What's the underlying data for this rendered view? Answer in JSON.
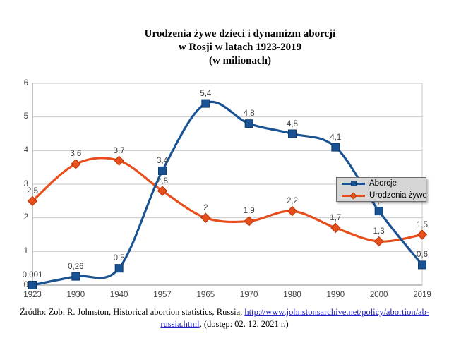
{
  "title": {
    "line1": "Urodzenia żywe dzieci i dynamizm aborcji",
    "line2": "w Rosji w latach 1923-2019",
    "line3": "(w milionach)"
  },
  "legend": {
    "items": [
      {
        "label": "Aborcje"
      },
      {
        "label": "Urodzenia żywe"
      }
    ]
  },
  "source": {
    "prefix": "Źródło: Zob. R. Johnston, Historical abortion statistics, Russia, ",
    "link_part1": "http://www.johnstonsarchive.net/policy/abortion/ab-",
    "link_part2": "russia.html",
    "suffix": ", (dostęp: 02. 12. 2021 r.)"
  },
  "chart_data": {
    "type": "line",
    "title": "Urodzenia żywe dzieci i dynamizm aborcji w Rosji w latach 1923-2019 (w milionach)",
    "xlabel": "",
    "ylabel": "",
    "categories": [
      "1923",
      "1930",
      "1940",
      "1957",
      "1965",
      "1970",
      "1980",
      "1990",
      "2000",
      "2019"
    ],
    "series": [
      {
        "name": "Aborcje",
        "color": "#1A5393",
        "marker": "square",
        "marker_border": "#0D3B6D",
        "values": [
          0.001,
          0.26,
          0.5,
          3.4,
          5.4,
          4.8,
          4.5,
          4.1,
          2.2,
          0.6
        ],
        "labels": [
          "0,001",
          "0,26",
          "0,5",
          "3,4",
          "5,4",
          "4,8",
          "4,5",
          "4,1",
          "2,2",
          "0,6"
        ]
      },
      {
        "name": "Urodzenia żywe",
        "color": "#E84E1B",
        "marker": "diamond",
        "marker_border": "#B43A0E",
        "values": [
          2.5,
          3.6,
          3.7,
          2.8,
          2.0,
          1.9,
          2.2,
          1.7,
          1.3,
          1.5
        ],
        "labels": [
          "2,5",
          "3,6",
          "3,7",
          "2,8",
          "2",
          "1,9",
          "2,2",
          "1,7",
          "1,3",
          "1,5"
        ]
      }
    ],
    "ylim": [
      0,
      6
    ],
    "yticks": [
      "0",
      "1",
      "2",
      "3",
      "4",
      "5",
      "6"
    ],
    "grid": true,
    "smooth_lines": true,
    "legend_position": "middle-right",
    "colors": {
      "gridline": "#C9C9C9",
      "axis": "#A0A0A0",
      "tick_text": "#3F3F3F",
      "legend_bg": "#D6D6D6",
      "legend_border": "#6B6B6B",
      "link": "#2020C8"
    }
  }
}
